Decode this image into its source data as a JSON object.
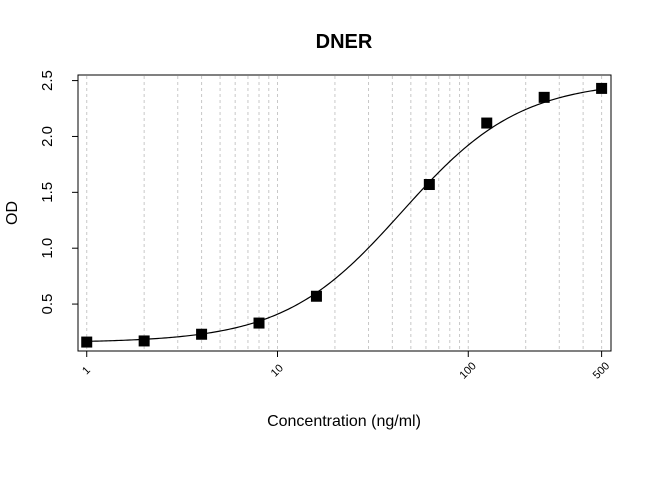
{
  "chart_data": {
    "type": "scatter",
    "title": "DNER",
    "xlabel": "Concentration (ng/ml)",
    "ylabel": "OD",
    "x_scale": "log",
    "xlim": [
      0.9,
      560
    ],
    "ylim": [
      0.08,
      2.55
    ],
    "x_ticks": [
      1,
      10,
      100,
      500
    ],
    "x_tick_labels": [
      "1",
      "10",
      "100",
      "500"
    ],
    "y_ticks": [
      0.5,
      1.0,
      1.5,
      2.0,
      2.5
    ],
    "y_tick_labels": [
      "0.5",
      "1.0",
      "1.5",
      "2.0",
      "2.5"
    ],
    "grid": "vertical dashed lines at log minor ticks",
    "legend": "none",
    "series": [
      {
        "x": [
          1,
          2,
          4,
          8,
          16,
          62.5,
          125,
          250,
          500
        ],
        "y": [
          0.16,
          0.17,
          0.23,
          0.33,
          0.57,
          1.57,
          2.12,
          2.35,
          2.43
        ],
        "fit": "4PL",
        "fit_params": {
          "bottom": 0.155,
          "top": 2.5,
          "ec50": 45,
          "hill": 1.4
        }
      }
    ]
  }
}
